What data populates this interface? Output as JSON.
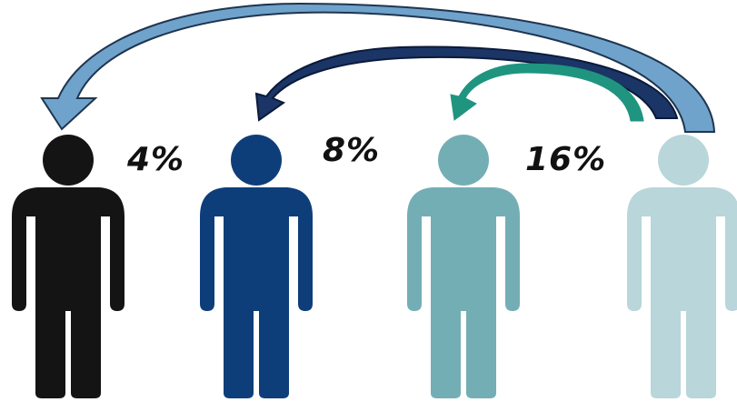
{
  "labels": {
    "a": "4%",
    "b": "8%",
    "c": "16%"
  },
  "people": [
    {
      "name": "person-black",
      "color": "#141414"
    },
    {
      "name": "person-dark-blue",
      "color": "#0e3e7a"
    },
    {
      "name": "person-teal",
      "color": "#74aeb5"
    },
    {
      "name": "person-pale-teal",
      "color": "#b9d6da"
    }
  ],
  "arrows": [
    {
      "name": "arrow-long",
      "fill": "#6fa3cc",
      "stroke": "#1f3550"
    },
    {
      "name": "arrow-medium",
      "fill": "#1a3566",
      "stroke": "#0b1a3a"
    },
    {
      "name": "arrow-short",
      "fill": "#1f9580",
      "stroke": "#1f9580"
    }
  ]
}
